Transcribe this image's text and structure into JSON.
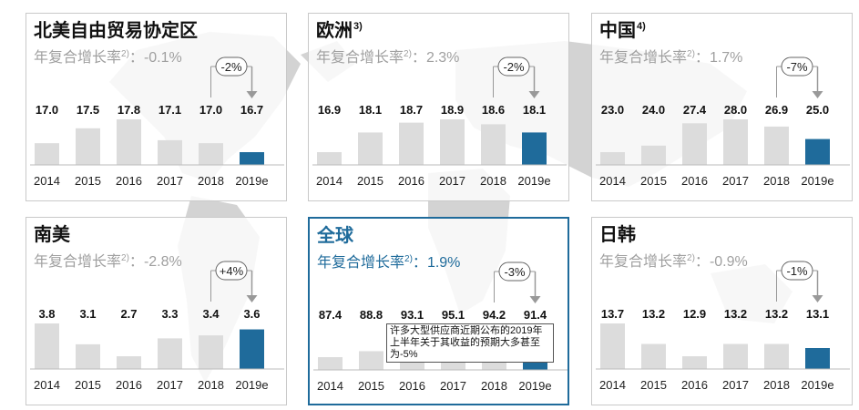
{
  "panels": [
    {
      "title": "北美自由贸易协定区",
      "title_sup": "",
      "subtitle": "年复合增长率",
      "sub_sup": "2)",
      "cagr": "-0.1%",
      "change": "-2%",
      "highlight": false
    },
    {
      "title": "欧洲",
      "title_sup": "3)",
      "subtitle": "年复合增长率",
      "sub_sup": "2)",
      "cagr": "2.3%",
      "change": "-2%",
      "highlight": false
    },
    {
      "title": "中国",
      "title_sup": "4)",
      "subtitle": "年复合增长率",
      "sub_sup": "2)",
      "cagr": "1.7%",
      "change": "-7%",
      "highlight": false
    },
    {
      "title": "南美",
      "title_sup": "",
      "subtitle": "年复合增长率",
      "sub_sup": "2)",
      "cagr": "-2.8%",
      "change": "+4%",
      "highlight": false
    },
    {
      "title": "全球",
      "title_sup": "",
      "subtitle": "年复合增长率",
      "sub_sup": "2)",
      "cagr": "1.9%",
      "change": "-3%",
      "highlight": true,
      "note": "许多大型供应商近期公布的2019年上半年关于其收益的预期大多甚至为-5%"
    },
    {
      "title": "日韩",
      "title_sup": "",
      "subtitle": "年复合增长率",
      "sub_sup": "2)",
      "cagr": "-0.9%",
      "change": "-1%",
      "highlight": false
    }
  ],
  "colors": {
    "bar": "#dcdcdc",
    "highlight_bar": "#1f6b9b",
    "accent": "#1f6b9b",
    "map": "#d3d3d3",
    "arrow": "#999999"
  },
  "chart_data": [
    {
      "type": "bar",
      "title": "北美自由贸易协定区",
      "categories": [
        "2014",
        "2015",
        "2016",
        "2017",
        "2018",
        "2019e"
      ],
      "values": [
        17.0,
        17.5,
        17.8,
        17.1,
        17.0,
        16.7
      ]
    },
    {
      "type": "bar",
      "title": "欧洲",
      "categories": [
        "2014",
        "2015",
        "2016",
        "2017",
        "2018",
        "2019e"
      ],
      "values": [
        16.9,
        18.1,
        18.7,
        18.9,
        18.6,
        18.1
      ]
    },
    {
      "type": "bar",
      "title": "中国",
      "categories": [
        "2014",
        "2015",
        "2016",
        "2017",
        "2018",
        "2019e"
      ],
      "values": [
        23.0,
        24.0,
        27.4,
        28.0,
        26.9,
        25.0
      ]
    },
    {
      "type": "bar",
      "title": "南美",
      "categories": [
        "2014",
        "2015",
        "2016",
        "2017",
        "2018",
        "2019e"
      ],
      "values": [
        3.8,
        3.1,
        2.7,
        3.3,
        3.4,
        3.6
      ]
    },
    {
      "type": "bar",
      "title": "全球",
      "categories": [
        "2014",
        "2015",
        "2016",
        "2017",
        "2018",
        "2019e"
      ],
      "values": [
        87.4,
        88.8,
        93.1,
        95.1,
        94.2,
        91.4
      ]
    },
    {
      "type": "bar",
      "title": "日韩",
      "categories": [
        "2014",
        "2015",
        "2016",
        "2017",
        "2018",
        "2019e"
      ],
      "values": [
        13.7,
        13.2,
        12.9,
        13.2,
        13.2,
        13.1
      ]
    }
  ]
}
